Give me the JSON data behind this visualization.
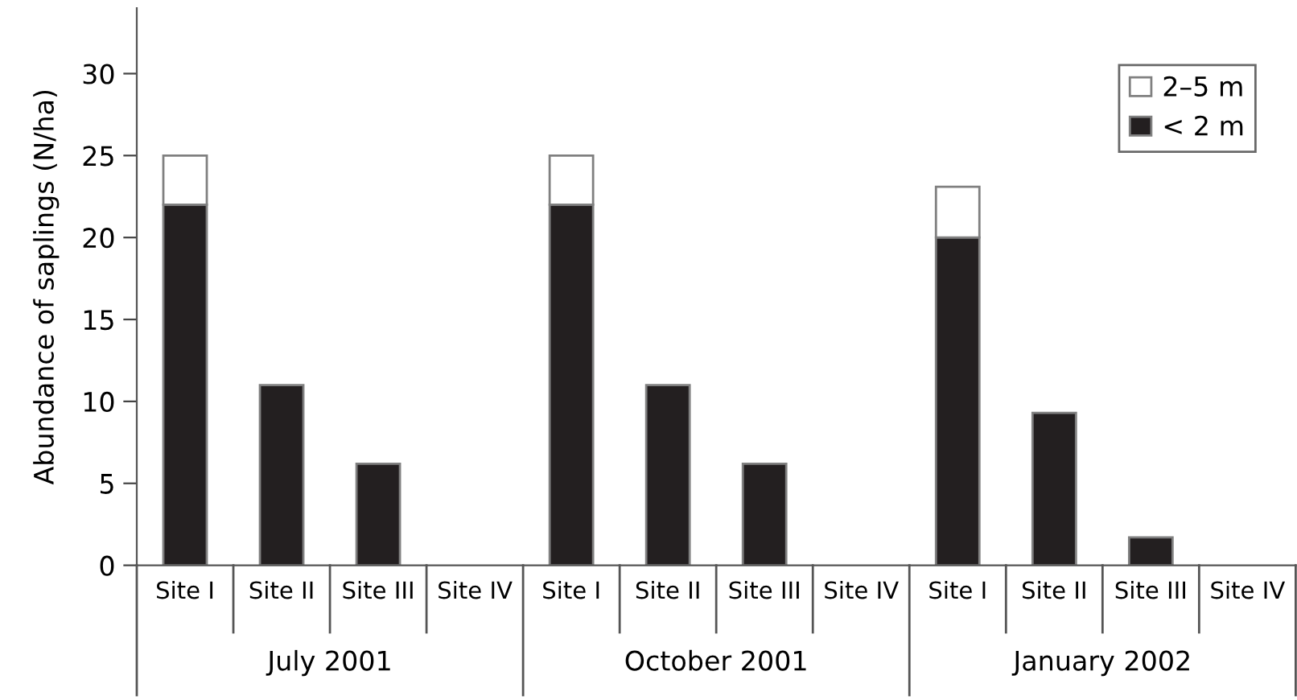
{
  "chart_data": {
    "type": "bar",
    "stacked": true,
    "ylabel": "Abundance of saplings (N/ha)",
    "categories": [
      "Site I",
      "Site II",
      "Site III",
      "Site IV",
      "Site I",
      "Site II",
      "Site III",
      "Site IV",
      "Site I",
      "Site II",
      "Site III",
      "Site IV"
    ],
    "annotations": [
      "July 2001",
      "October 2001",
      "January 2002"
    ],
    "series": [
      {
        "name": "< 2 m",
        "color": "#231f20",
        "values": [
          22,
          11,
          6.2,
          0,
          22,
          11,
          6.2,
          0,
          20,
          9.3,
          1.7,
          0
        ]
      },
      {
        "name": "2–5 m",
        "color": "#ffffff",
        "values": [
          3,
          null,
          null,
          null,
          3,
          null,
          null,
          null,
          3.1,
          null,
          null,
          null
        ]
      }
    ],
    "ylim": [
      0,
      34
    ],
    "yticks": [
      0,
      5,
      10,
      15,
      20,
      25,
      30
    ],
    "grid": false,
    "legend": "top right"
  }
}
